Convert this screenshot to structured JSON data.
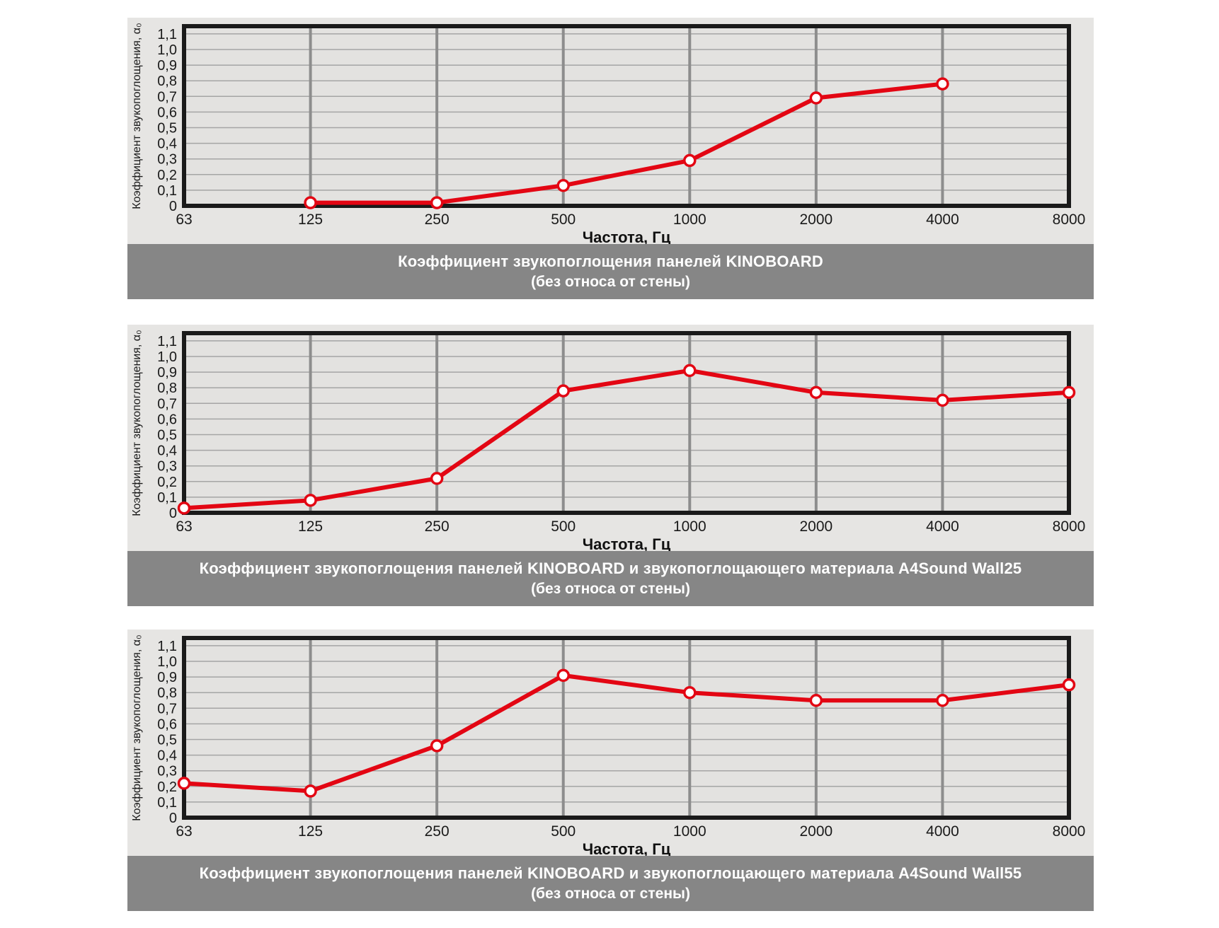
{
  "page": {
    "background": "#ffffff",
    "panel_background": "#e6e5e3"
  },
  "colors": {
    "plot_bg": "#e3e2e0",
    "grid_minor": "#a5a5a5",
    "grid_major": "#8d8d8d",
    "border": "#1a1a1a",
    "line": "#e30613",
    "marker_fill": "#ffffff",
    "caption_bg": "#868686",
    "caption_text": "#ffffff"
  },
  "axis": {
    "x_label": "Частота, Гц",
    "y_label": "Коэффициент звукопоглощения, α₀",
    "x_ticks": [
      "63",
      "125",
      "250",
      "500",
      "1000",
      "2000",
      "4000",
      "8000"
    ],
    "y_ticks": [
      "0",
      "0,1",
      "0,2",
      "0,3",
      "0,4",
      "0,5",
      "0,6",
      "0,7",
      "0,8",
      "0,9",
      "1,0",
      "1,1"
    ]
  },
  "chart_data": [
    {
      "type": "line",
      "title": "Коэффициент звукопоглощения панелей KINOBOARD",
      "subtitle": "(без относа от стены)",
      "xlabel": "Частота, Гц",
      "ylabel": "Коэффициент звукопоглощения, α₀",
      "x_scale": "log-octave",
      "categories": [
        "63",
        "125",
        "250",
        "500",
        "1000",
        "2000",
        "4000",
        "8000"
      ],
      "values": [
        null,
        0.02,
        0.02,
        0.13,
        0.29,
        0.69,
        0.78,
        null
      ],
      "ylim": [
        0,
        1.15
      ],
      "grid": true,
      "legend": "none",
      "marker": "open-circle",
      "caption_line1": "Коэффициент звукопоглощения панелей KINOBOARD",
      "caption_line2": "(без относа от стены)"
    },
    {
      "type": "line",
      "title": "Коэффициент звукопоглощения панелей KINOBOARD и звукопоглощающего материала A4Sound Wall25",
      "subtitle": "(без относа от стены)",
      "xlabel": "Частота, Гц",
      "ylabel": "Коэффициент звукопоглощения, α₀",
      "x_scale": "log-octave",
      "categories": [
        "63",
        "125",
        "250",
        "500",
        "1000",
        "2000",
        "4000",
        "8000"
      ],
      "values": [
        0.03,
        0.08,
        0.22,
        0.78,
        0.91,
        0.77,
        0.72,
        0.77
      ],
      "ylim": [
        0,
        1.15
      ],
      "grid": true,
      "legend": "none",
      "marker": "open-circle",
      "caption_line1": "Коэффициент звукопоглощения панелей KINOBOARD и звукопоглощающего материала A4Sound Wall25",
      "caption_line2": "(без относа от стены)"
    },
    {
      "type": "line",
      "title": "Коэффициент звукопоглощения панелей KINOBOARD и звукопоглощающего материала A4Sound Wall55",
      "subtitle": "(без относа от стены)",
      "xlabel": "Частота, Гц",
      "ylabel": "Коэффициент звукопоглощения, α₀",
      "x_scale": "log-octave",
      "categories": [
        "63",
        "125",
        "250",
        "500",
        "1000",
        "2000",
        "4000",
        "8000"
      ],
      "values": [
        0.22,
        0.17,
        0.46,
        0.91,
        0.8,
        0.75,
        0.75,
        0.85
      ],
      "ylim": [
        0,
        1.15
      ],
      "grid": true,
      "legend": "none",
      "marker": "open-circle",
      "caption_line1": "Коэффициент звукопоглощения панелей KINOBOARD и звукопоглощающего материала A4Sound Wall55",
      "caption_line2": "(без относа от стены)"
    }
  ]
}
